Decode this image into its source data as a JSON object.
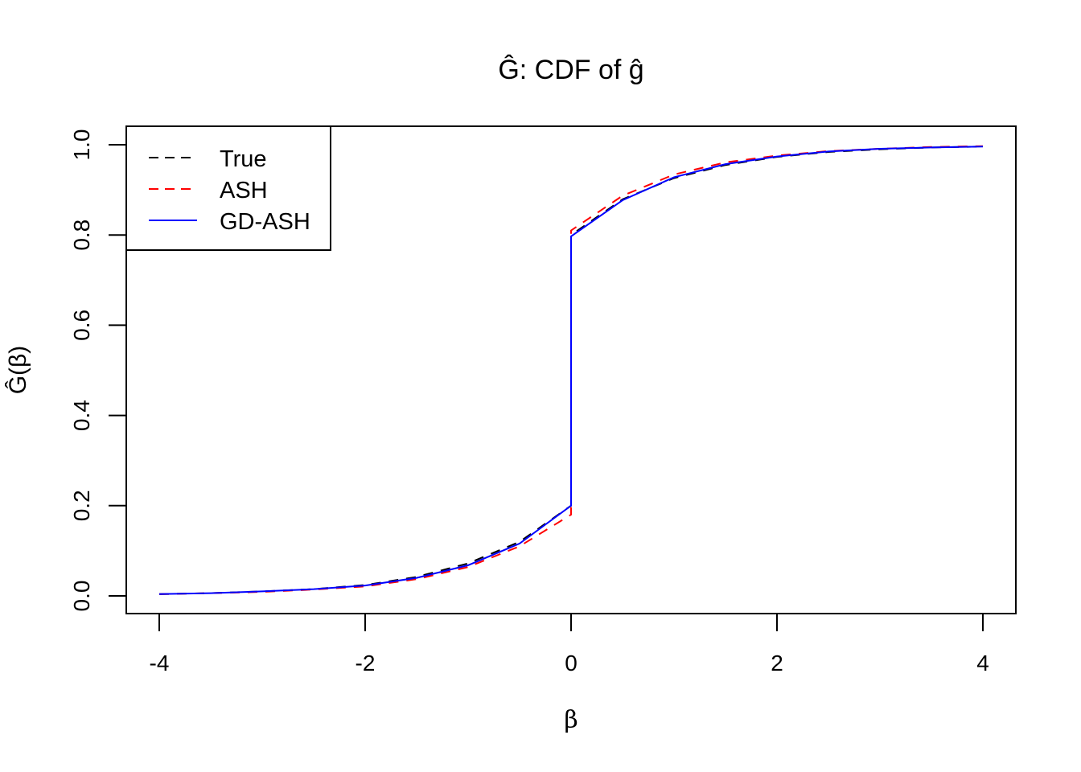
{
  "chart_data": {
    "type": "line",
    "title": "Ĝ: CDF of ĝ",
    "xlabel": "β",
    "ylabel": "Ĝ(β)",
    "xlim": [
      -4.32,
      4.32
    ],
    "ylim": [
      -0.04,
      1.04
    ],
    "xticks": [
      -4,
      -2,
      0,
      2,
      4
    ],
    "xtick_labels": [
      "-4",
      "-2",
      "0",
      "2",
      "4"
    ],
    "yticks": [
      0,
      0.2,
      0.4,
      0.6,
      0.8,
      1.0
    ],
    "ytick_labels": [
      "0.0",
      "0.2",
      "0.4",
      "0.6",
      "0.8",
      "1.0"
    ],
    "grid": false,
    "legend_position": "top-left",
    "x": [
      -4,
      -3.5,
      -3,
      -2.5,
      -2,
      -1.5,
      -1,
      -0.5,
      0,
      0,
      0.5,
      1,
      1.5,
      2,
      2.5,
      3,
      3.5,
      4
    ],
    "series": [
      {
        "name": "True",
        "color": "#000000",
        "dash": "dashed",
        "values": [
          0.004,
          0.006,
          0.01,
          0.015,
          0.024,
          0.042,
          0.072,
          0.12,
          0.2,
          0.8,
          0.879,
          0.926,
          0.955,
          0.973,
          0.984,
          0.99,
          0.994,
          0.996
        ]
      },
      {
        "name": "ASH",
        "color": "#ff0000",
        "dash": "dashed",
        "values": [
          0.004,
          0.006,
          0.009,
          0.014,
          0.021,
          0.037,
          0.064,
          0.11,
          0.18,
          0.81,
          0.887,
          0.934,
          0.961,
          0.976,
          0.986,
          0.991,
          0.995,
          0.997
        ]
      },
      {
        "name": "GD-ASH",
        "color": "#0000ff",
        "dash": "solid",
        "values": [
          0.004,
          0.006,
          0.01,
          0.015,
          0.023,
          0.04,
          0.068,
          0.116,
          0.2,
          0.797,
          0.877,
          0.928,
          0.957,
          0.974,
          0.985,
          0.991,
          0.994,
          0.996
        ]
      }
    ]
  }
}
